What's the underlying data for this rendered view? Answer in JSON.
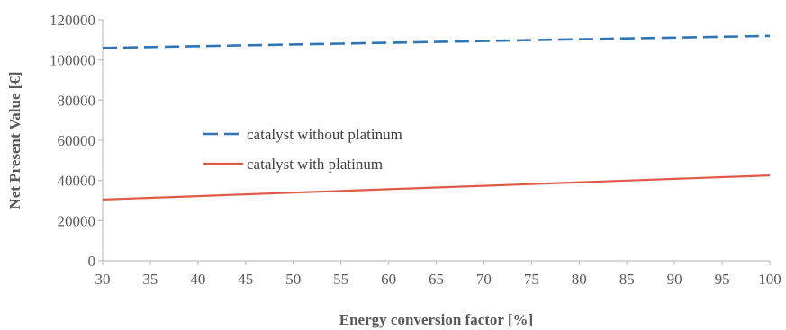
{
  "chart_data": {
    "type": "line",
    "xlabel": "Energy conversion factor [%]",
    "ylabel": "Net Present Value [€]",
    "xlim": [
      30,
      100
    ],
    "ylim": [
      0,
      120000
    ],
    "x_ticks": [
      "30",
      "35",
      "40",
      "45",
      "50",
      "55",
      "60",
      "65",
      "70",
      "75",
      "80",
      "85",
      "90",
      "95",
      "100"
    ],
    "y_ticks": [
      "0",
      "20000",
      "40000",
      "60000",
      "80000",
      "100000",
      "120000"
    ],
    "grid": false,
    "legend_position": "center-left",
    "x": [
      30,
      35,
      40,
      45,
      50,
      55,
      60,
      65,
      70,
      75,
      80,
      85,
      90,
      95,
      100
    ],
    "series": [
      {
        "name": "catalyst without platinum",
        "color": "#2e75b6",
        "style": "dashed",
        "values": [
          106000,
          106430,
          106860,
          107290,
          107710,
          108140,
          108570,
          109000,
          109430,
          109860,
          110290,
          110710,
          111140,
          111570,
          112000
        ]
      },
      {
        "name": "catalyst with platinum",
        "color": "#e05a4a",
        "style": "solid",
        "values": [
          30500,
          31360,
          32210,
          33070,
          33930,
          34790,
          35640,
          36500,
          37360,
          38210,
          39070,
          39930,
          40790,
          41640,
          42500
        ]
      }
    ]
  }
}
